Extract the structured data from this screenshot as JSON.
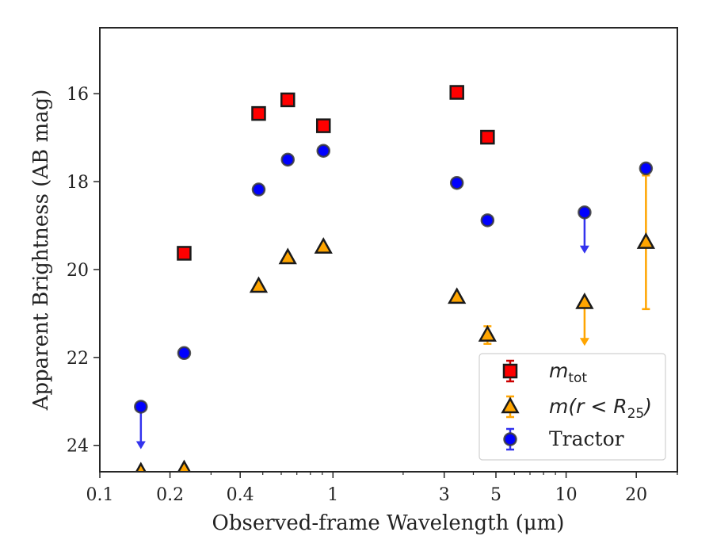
{
  "chart_data": {
    "type": "scatter",
    "xlabel": "Observed-frame Wavelength (μm)",
    "ylabel": "Apparent Brightness (AB mag)",
    "xscale": "log",
    "xlim": [
      0.1,
      30
    ],
    "ylim": [
      24.6,
      14.5
    ],
    "y_inverted": true,
    "x_ticks": [
      {
        "value": 0.1,
        "label": "0.1"
      },
      {
        "value": 0.2,
        "label": "0.2"
      },
      {
        "value": 0.4,
        "label": "0.4"
      },
      {
        "value": 1,
        "label": "1"
      },
      {
        "value": 3,
        "label": "3"
      },
      {
        "value": 5,
        "label": "5"
      },
      {
        "value": 10,
        "label": "10"
      },
      {
        "value": 20,
        "label": "20"
      }
    ],
    "y_ticks": [
      {
        "value": 16,
        "label": "16"
      },
      {
        "value": 18,
        "label": "18"
      },
      {
        "value": 20,
        "label": "20"
      },
      {
        "value": 22,
        "label": "22"
      },
      {
        "value": 24,
        "label": "24"
      }
    ],
    "grid": false,
    "legend_position": "bottom-right",
    "series": [
      {
        "name": "m_tot",
        "label_main": "m",
        "label_sub": "tot",
        "marker": "square",
        "color": "#ff0000",
        "edge_color": "#1a1a1a",
        "errcolor": "#cc0000",
        "points": [
          {
            "x": 0.23,
            "y": 19.63
          },
          {
            "x": 0.48,
            "y": 16.45
          },
          {
            "x": 0.64,
            "y": 16.14
          },
          {
            "x": 0.91,
            "y": 16.73
          },
          {
            "x": 3.4,
            "y": 15.97
          },
          {
            "x": 4.6,
            "y": 16.99
          }
        ]
      },
      {
        "name": "m(r < R25)",
        "label_main": "m(r < R",
        "label_sub": "25",
        "label_tail": ")",
        "marker": "triangle",
        "color": "#ffa500",
        "edge_color": "#1a1a1a",
        "errcolor": "#ffa500",
        "points": [
          {
            "x": 0.15,
            "y": 24.6
          },
          {
            "x": 0.23,
            "y": 24.55
          },
          {
            "x": 0.48,
            "y": 20.38
          },
          {
            "x": 0.64,
            "y": 19.73
          },
          {
            "x": 0.91,
            "y": 19.49
          },
          {
            "x": 3.4,
            "y": 20.63
          },
          {
            "x": 4.6,
            "y": 21.49,
            "yerr_lo": 0.2,
            "yerr_hi": 0.2
          },
          {
            "x": 12.0,
            "y": 20.75,
            "upper_limit": true,
            "arrow_to": 21.7
          },
          {
            "x": 22.0,
            "y": 19.38,
            "yerr_lo": 1.52,
            "yerr_hi": 1.52
          }
        ]
      },
      {
        "name": "Tractor",
        "label_main": "Tractor",
        "marker": "circle",
        "color": "#0000ff",
        "edge_color": "#3a3a3a",
        "errcolor": "#3333ee",
        "points": [
          {
            "x": 0.15,
            "y": 23.12,
            "upper_limit": true,
            "arrow_to": 24.05
          },
          {
            "x": 0.23,
            "y": 21.9
          },
          {
            "x": 0.48,
            "y": 18.18
          },
          {
            "x": 0.64,
            "y": 17.5
          },
          {
            "x": 0.91,
            "y": 17.3
          },
          {
            "x": 3.4,
            "y": 18.03
          },
          {
            "x": 4.6,
            "y": 18.88
          },
          {
            "x": 12.0,
            "y": 18.7,
            "upper_limit": true,
            "arrow_to": 19.6
          },
          {
            "x": 22.0,
            "y": 17.7
          }
        ]
      }
    ]
  }
}
